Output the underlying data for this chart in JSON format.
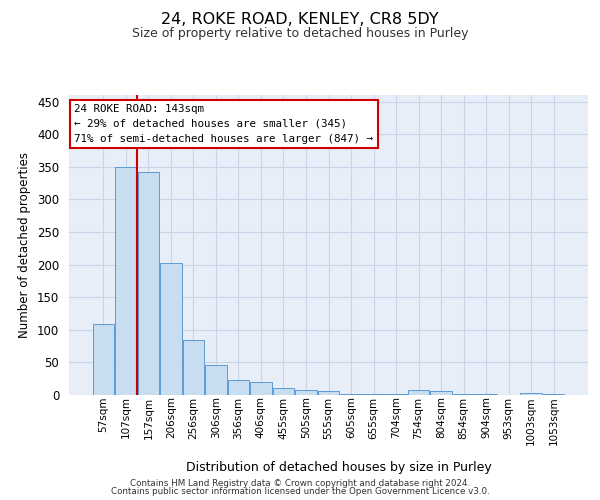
{
  "title": "24, ROKE ROAD, KENLEY, CR8 5DY",
  "subtitle": "Size of property relative to detached houses in Purley",
  "xlabel": "Distribution of detached houses by size in Purley",
  "ylabel": "Number of detached properties",
  "bar_labels": [
    "57sqm",
    "107sqm",
    "157sqm",
    "206sqm",
    "256sqm",
    "306sqm",
    "356sqm",
    "406sqm",
    "455sqm",
    "505sqm",
    "555sqm",
    "605sqm",
    "655sqm",
    "704sqm",
    "754sqm",
    "804sqm",
    "854sqm",
    "904sqm",
    "953sqm",
    "1003sqm",
    "1053sqm"
  ],
  "bar_values": [
    109,
    349,
    342,
    202,
    84,
    46,
    23,
    20,
    10,
    7,
    6,
    1,
    1,
    1,
    7,
    6,
    1,
    1,
    0,
    3,
    1
  ],
  "bar_color": "#c8ddf0",
  "bar_edge_color": "#5b9bd5",
  "vline_color": "#cc0000",
  "vline_position": 1.5,
  "annotation_text": "24 ROKE ROAD: 143sqm\n← 29% of detached houses are smaller (345)\n71% of semi-detached houses are larger (847) →",
  "ylim": [
    0,
    460
  ],
  "yticks": [
    0,
    50,
    100,
    150,
    200,
    250,
    300,
    350,
    400,
    450
  ],
  "grid_color": "#c8d4e8",
  "bg_color": "#e8eef8",
  "footer_line1": "Contains HM Land Registry data © Crown copyright and database right 2024.",
  "footer_line2": "Contains public sector information licensed under the Open Government Licence v3.0."
}
